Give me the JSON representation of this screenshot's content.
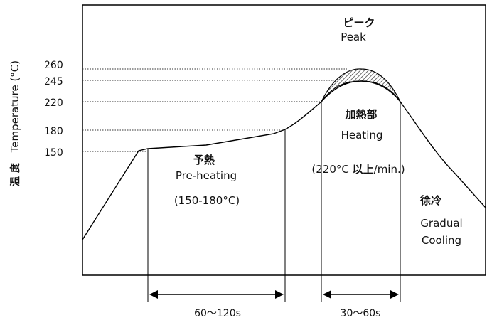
{
  "yaxis": {
    "label_jp": "温 度",
    "label_en": "Temperature (°C)",
    "ticks": [
      "260",
      "245",
      "220",
      "180",
      "150"
    ]
  },
  "peak": {
    "jp": "ピーク",
    "en": "Peak"
  },
  "preheat": {
    "jp": "予熱",
    "en": "Pre-heating",
    "range": "(150-180°C)"
  },
  "heating": {
    "jp": "加熱部",
    "en": "Heating",
    "rate_pre": "(220°C ",
    "rate_bold": "以上",
    "rate_post": "/min.)"
  },
  "cooling": {
    "jp": "徐冷",
    "en1": "Gradual",
    "en2": "Cooling"
  },
  "durations": {
    "preheat": "60～120s",
    "heating": "30～60s"
  }
}
